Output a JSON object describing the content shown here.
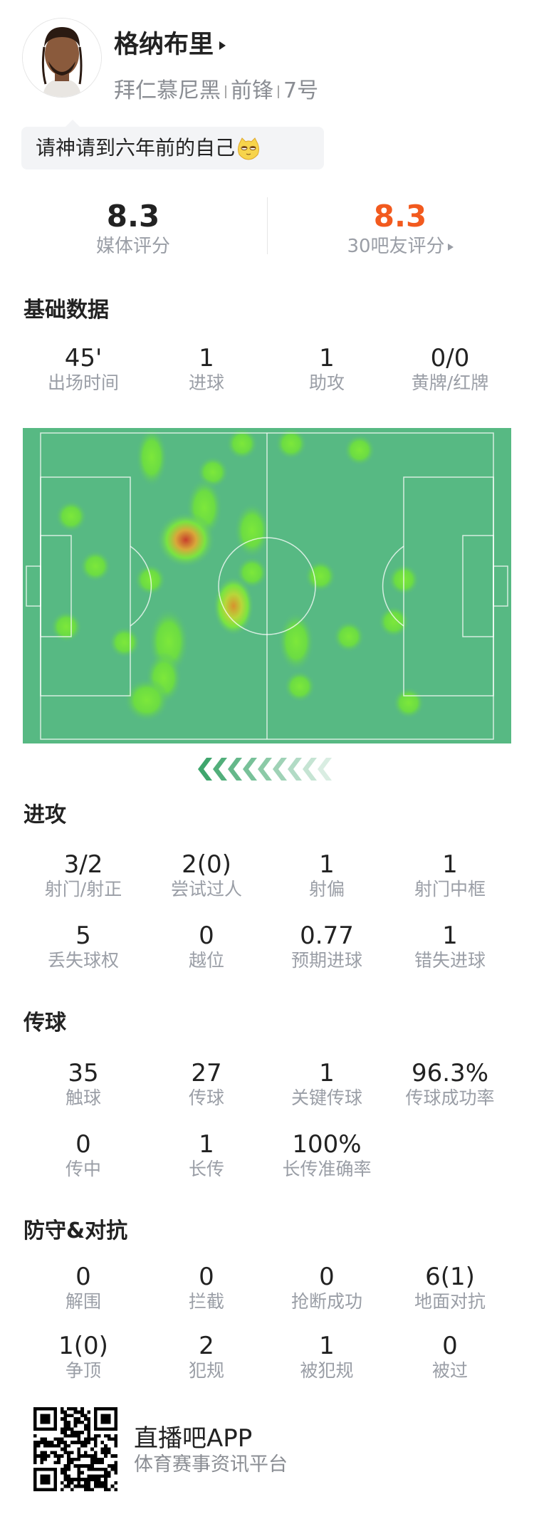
{
  "player": {
    "name": "格纳布里",
    "team": "拜仁慕尼黑",
    "position": "前锋",
    "number": "7号",
    "comment": "请神请到六年前的自己"
  },
  "ratings": {
    "media_value": "8.3",
    "media_label": "媒体评分",
    "fans_value": "8.3",
    "fans_label": "30吧友评分",
    "fans_color": "#f25a1e"
  },
  "sections": [
    {
      "title": "基础数据",
      "rows": [
        [
          {
            "value": "45'",
            "label": "出场时间"
          },
          {
            "value": "1",
            "label": "进球"
          },
          {
            "value": "1",
            "label": "助攻"
          },
          {
            "value": "0/0",
            "label": "黄牌/红牌"
          }
        ]
      ]
    },
    {
      "title": "进攻",
      "rows": [
        [
          {
            "value": "3/2",
            "label": "射门/射正"
          },
          {
            "value": "2(0)",
            "label": "尝试过人"
          },
          {
            "value": "1",
            "label": "射偏"
          },
          {
            "value": "1",
            "label": "射门中框"
          }
        ],
        [
          {
            "value": "5",
            "label": "丢失球权"
          },
          {
            "value": "0",
            "label": "越位"
          },
          {
            "value": "0.77",
            "label": "预期进球"
          },
          {
            "value": "1",
            "label": "错失进球"
          }
        ]
      ]
    },
    {
      "title": "传球",
      "rows": [
        [
          {
            "value": "35",
            "label": "触球"
          },
          {
            "value": "27",
            "label": "传球"
          },
          {
            "value": "1",
            "label": "关键传球"
          },
          {
            "value": "96.3%",
            "label": "传球成功率"
          }
        ],
        [
          {
            "value": "0",
            "label": "传中"
          },
          {
            "value": "1",
            "label": "长传"
          },
          {
            "value": "100%",
            "label": "长传准确率"
          }
        ]
      ]
    },
    {
      "title": "防守&对抗",
      "rows": [
        [
          {
            "value": "0",
            "label": "解围"
          },
          {
            "value": "0",
            "label": "拦截"
          },
          {
            "value": "0",
            "label": "抢断成功"
          },
          {
            "value": "6(1)",
            "label": "地面对抗"
          }
        ],
        [
          {
            "value": "1(0)",
            "label": "争顶"
          },
          {
            "value": "2",
            "label": "犯规"
          },
          {
            "value": "1",
            "label": "被犯规"
          },
          {
            "value": "0",
            "label": "被过"
          }
        ]
      ]
    }
  ],
  "heatmap": {
    "pitch_color": "#57b983",
    "direction": "left"
  },
  "footer": {
    "brand": "直播吧APP",
    "tagline": "体育赛事资讯平台"
  }
}
